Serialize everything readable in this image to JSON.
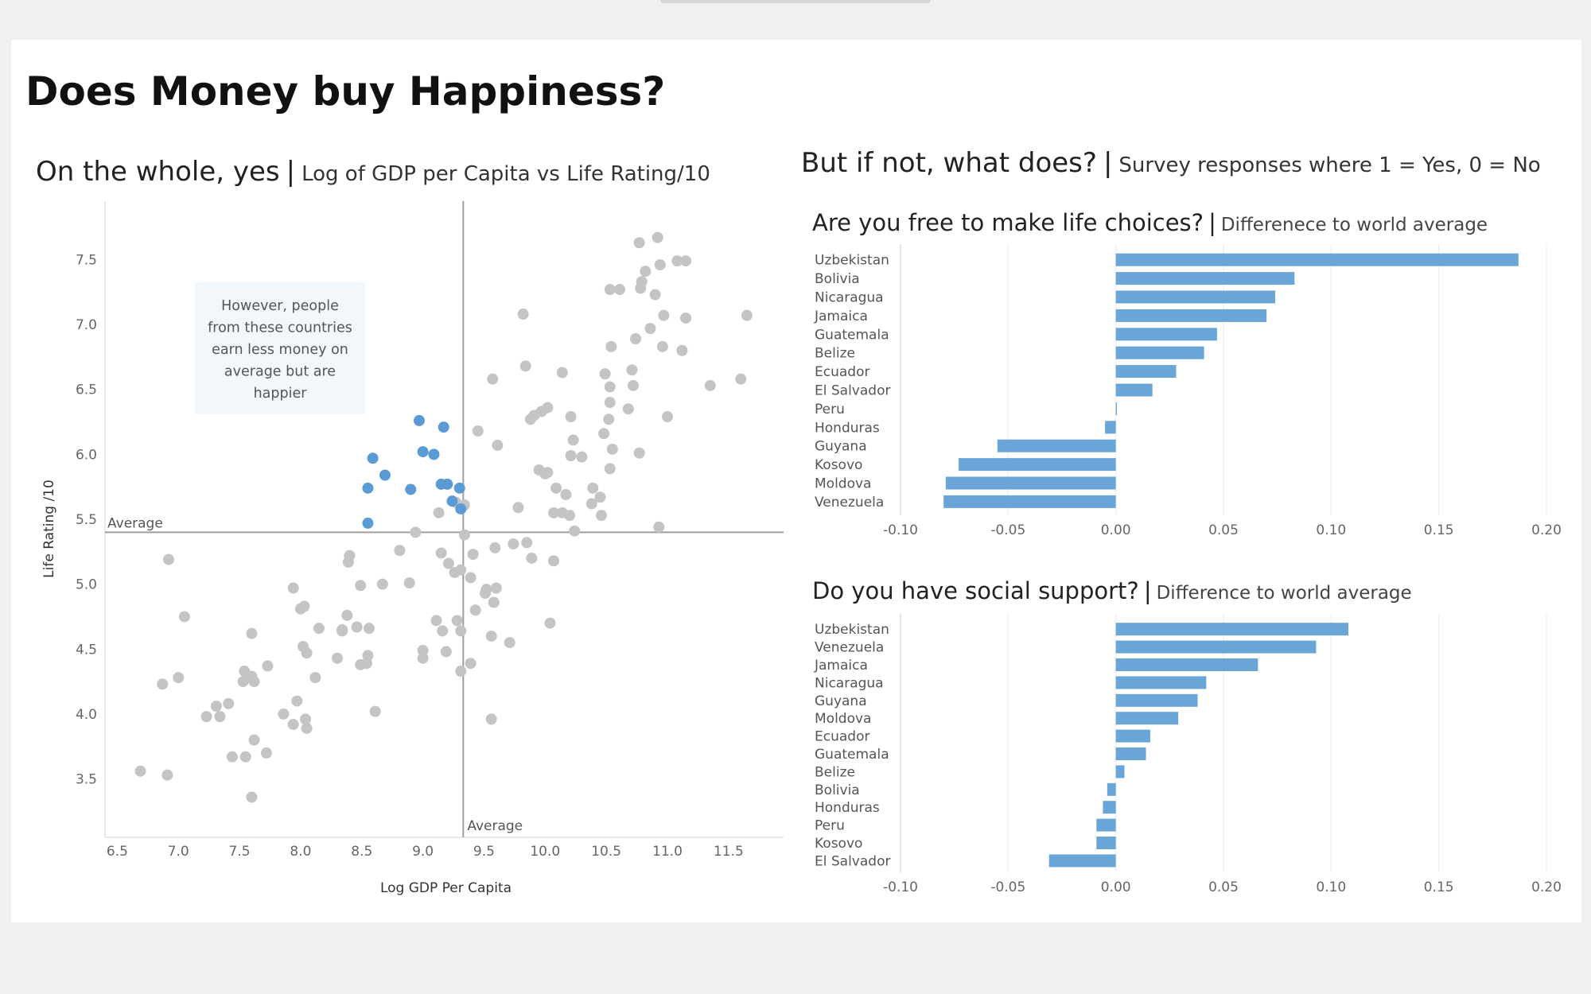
{
  "title": "Does Money buy Happiness?",
  "scatter_section": {
    "title": "On the whole, yes",
    "subtitle": "Log of GDP per Capita vs Life Rating/10",
    "annotation_lines": [
      "However, people",
      "from these countries",
      "earn less money on",
      "average but are",
      "happier"
    ]
  },
  "right_section": {
    "title": "But if not, what does?",
    "subtitle": "Survey responses where 1 = Yes, 0 = No"
  },
  "colors": {
    "highlight": "#5b9bd5",
    "points": "#c4c4c4",
    "bars": "#6aa5d8",
    "reference_line": "#9e9e9e",
    "annotation_bg": "#f2f7fc"
  },
  "chart_data": [
    {
      "type": "scatter",
      "xlabel": "Log GDP Per Capita",
      "ylabel": "Life Rating /10",
      "xlim": [
        6.4,
        11.95
      ],
      "ylim": [
        3.05,
        7.95
      ],
      "x_ticks": [
        "6.5",
        "7.0",
        "7.5",
        "8.0",
        "8.5",
        "9.0",
        "9.5",
        "10.0",
        "10.5",
        "11.0",
        "11.5"
      ],
      "y_ticks": [
        "3.5",
        "4.0",
        "4.5",
        "5.0",
        "5.5",
        "6.0",
        "6.5",
        "7.0",
        "7.5"
      ],
      "reference_lines": {
        "x": {
          "value": 9.33,
          "label": "Average"
        },
        "y": {
          "value": 5.4,
          "label": "Average"
        }
      },
      "highlighted_points": [
        [
          8.97,
          6.26
        ],
        [
          9.17,
          6.21
        ],
        [
          8.59,
          5.97
        ],
        [
          9.0,
          6.02
        ],
        [
          9.09,
          6.0
        ],
        [
          8.69,
          5.84
        ],
        [
          8.55,
          5.74
        ],
        [
          8.9,
          5.73
        ],
        [
          9.15,
          5.77
        ],
        [
          9.2,
          5.77
        ],
        [
          9.3,
          5.74
        ],
        [
          9.24,
          5.64
        ],
        [
          9.31,
          5.58
        ],
        [
          8.55,
          5.47
        ]
      ],
      "points": [
        [
          10.77,
          7.63
        ],
        [
          10.92,
          7.67
        ],
        [
          10.94,
          7.46
        ],
        [
          11.08,
          7.49
        ],
        [
          11.15,
          7.49
        ],
        [
          10.82,
          7.41
        ],
        [
          10.79,
          7.33
        ],
        [
          10.78,
          7.28
        ],
        [
          10.53,
          7.27
        ],
        [
          10.61,
          7.27
        ],
        [
          10.9,
          7.23
        ],
        [
          11.65,
          7.07
        ],
        [
          10.97,
          7.07
        ],
        [
          11.15,
          7.05
        ],
        [
          9.82,
          7.08
        ],
        [
          10.86,
          6.97
        ],
        [
          10.74,
          6.89
        ],
        [
          10.54,
          6.83
        ],
        [
          10.96,
          6.83
        ],
        [
          11.12,
          6.8
        ],
        [
          9.84,
          6.68
        ],
        [
          10.14,
          6.63
        ],
        [
          10.71,
          6.65
        ],
        [
          10.49,
          6.62
        ],
        [
          9.57,
          6.58
        ],
        [
          11.6,
          6.58
        ],
        [
          11.35,
          6.53
        ],
        [
          10.53,
          6.52
        ],
        [
          10.72,
          6.53
        ],
        [
          10.53,
          6.4
        ],
        [
          10.02,
          6.36
        ],
        [
          10.68,
          6.35
        ],
        [
          9.97,
          6.33
        ],
        [
          9.91,
          6.3
        ],
        [
          9.88,
          6.27
        ],
        [
          10.21,
          6.29
        ],
        [
          11.0,
          6.29
        ],
        [
          10.52,
          6.27
        ],
        [
          9.45,
          6.18
        ],
        [
          10.48,
          6.16
        ],
        [
          10.23,
          6.11
        ],
        [
          9.61,
          6.07
        ],
        [
          10.55,
          6.04
        ],
        [
          10.77,
          6.01
        ],
        [
          10.21,
          5.99
        ],
        [
          10.3,
          5.98
        ],
        [
          9.95,
          5.88
        ],
        [
          10.02,
          5.86
        ],
        [
          10.53,
          5.89
        ],
        [
          10.0,
          5.85
        ],
        [
          10.09,
          5.74
        ],
        [
          10.39,
          5.74
        ],
        [
          10.17,
          5.69
        ],
        [
          10.45,
          5.67
        ],
        [
          9.27,
          5.63
        ],
        [
          9.34,
          5.61
        ],
        [
          9.78,
          5.59
        ],
        [
          10.38,
          5.62
        ],
        [
          10.07,
          5.55
        ],
        [
          10.14,
          5.55
        ],
        [
          10.2,
          5.53
        ],
        [
          10.46,
          5.53
        ],
        [
          9.13,
          5.55
        ],
        [
          10.93,
          5.44
        ],
        [
          10.24,
          5.41
        ],
        [
          8.94,
          5.4
        ],
        [
          9.34,
          5.38
        ],
        [
          9.74,
          5.31
        ],
        [
          9.59,
          5.28
        ],
        [
          9.85,
          5.32
        ],
        [
          8.81,
          5.26
        ],
        [
          9.15,
          5.24
        ],
        [
          9.41,
          5.23
        ],
        [
          8.4,
          5.22
        ],
        [
          8.39,
          5.17
        ],
        [
          10.07,
          5.18
        ],
        [
          9.89,
          5.2
        ],
        [
          9.21,
          5.16
        ],
        [
          9.26,
          5.09
        ],
        [
          9.31,
          5.11
        ],
        [
          9.39,
          5.05
        ],
        [
          6.92,
          5.19
        ],
        [
          8.67,
          5.0
        ],
        [
          8.89,
          5.01
        ],
        [
          8.49,
          4.99
        ],
        [
          7.94,
          4.97
        ],
        [
          9.52,
          4.96
        ],
        [
          9.51,
          4.93
        ],
        [
          9.6,
          4.97
        ],
        [
          9.58,
          4.86
        ],
        [
          8.03,
          4.83
        ],
        [
          8.0,
          4.81
        ],
        [
          9.43,
          4.8
        ],
        [
          7.05,
          4.75
        ],
        [
          8.38,
          4.76
        ],
        [
          9.11,
          4.72
        ],
        [
          9.28,
          4.72
        ],
        [
          10.04,
          4.7
        ],
        [
          8.15,
          4.66
        ],
        [
          8.34,
          4.65
        ],
        [
          8.46,
          4.67
        ],
        [
          8.56,
          4.66
        ],
        [
          9.16,
          4.64
        ],
        [
          9.31,
          4.64
        ],
        [
          7.6,
          4.62
        ],
        [
          9.56,
          4.6
        ],
        [
          8.34,
          4.64
        ],
        [
          8.02,
          4.52
        ],
        [
          9.71,
          4.55
        ],
        [
          9.0,
          4.49
        ],
        [
          9.19,
          4.48
        ],
        [
          8.05,
          4.47
        ],
        [
          8.3,
          4.43
        ],
        [
          8.55,
          4.45
        ],
        [
          9.0,
          4.43
        ],
        [
          8.49,
          4.38
        ],
        [
          8.54,
          4.39
        ],
        [
          9.39,
          4.39
        ],
        [
          7.73,
          4.37
        ],
        [
          7.54,
          4.33
        ],
        [
          7.6,
          4.29
        ],
        [
          7.0,
          4.28
        ],
        [
          9.31,
          4.33
        ],
        [
          8.12,
          4.28
        ],
        [
          7.53,
          4.25
        ],
        [
          7.62,
          4.25
        ],
        [
          6.87,
          4.23
        ],
        [
          7.97,
          4.1
        ],
        [
          7.41,
          4.08
        ],
        [
          7.31,
          4.06
        ],
        [
          7.86,
          4.0
        ],
        [
          7.23,
          3.98
        ],
        [
          7.34,
          3.98
        ],
        [
          8.61,
          4.02
        ],
        [
          8.04,
          3.96
        ],
        [
          9.56,
          3.96
        ],
        [
          7.94,
          3.92
        ],
        [
          8.05,
          3.89
        ],
        [
          7.62,
          3.8
        ],
        [
          7.72,
          3.7
        ],
        [
          7.44,
          3.67
        ],
        [
          7.55,
          3.67
        ],
        [
          6.69,
          3.56
        ],
        [
          6.91,
          3.53
        ],
        [
          7.6,
          3.36
        ]
      ]
    },
    {
      "type": "bar",
      "orientation": "horizontal",
      "title": "Are you free to make life choices?",
      "subtitle": "Differenece to world average",
      "xlim": [
        -0.1,
        0.2
      ],
      "x_ticks": [
        "-0.10",
        "-0.05",
        "0.00",
        "0.05",
        "0.10",
        "0.15",
        "0.20"
      ],
      "categories": [
        "Uzbekistan",
        "Bolivia",
        "Nicaragua",
        "Jamaica",
        "Guatemala",
        "Belize",
        "Ecuador",
        "El Salvador",
        "Peru",
        "Honduras",
        "Guyana",
        "Kosovo",
        "Moldova",
        "Venezuela"
      ],
      "values": [
        0.187,
        0.083,
        0.074,
        0.07,
        0.047,
        0.041,
        0.028,
        0.017,
        0.0005,
        -0.005,
        -0.055,
        -0.073,
        -0.079,
        -0.08
      ]
    },
    {
      "type": "bar",
      "orientation": "horizontal",
      "title": "Do you have social support?",
      "subtitle": "Difference to world average",
      "xlim": [
        -0.1,
        0.2
      ],
      "x_ticks": [
        "-0.10",
        "-0.05",
        "0.00",
        "0.05",
        "0.10",
        "0.15",
        "0.20"
      ],
      "categories": [
        "Uzbekistan",
        "Venezuela",
        "Jamaica",
        "Nicaragua",
        "Guyana",
        "Moldova",
        "Ecuador",
        "Guatemala",
        "Belize",
        "Bolivia",
        "Honduras",
        "Peru",
        "Kosovo",
        "El Salvador"
      ],
      "values": [
        0.108,
        0.093,
        0.066,
        0.042,
        0.038,
        0.029,
        0.016,
        0.014,
        0.004,
        -0.004,
        -0.006,
        -0.009,
        -0.009,
        -0.031
      ]
    }
  ]
}
